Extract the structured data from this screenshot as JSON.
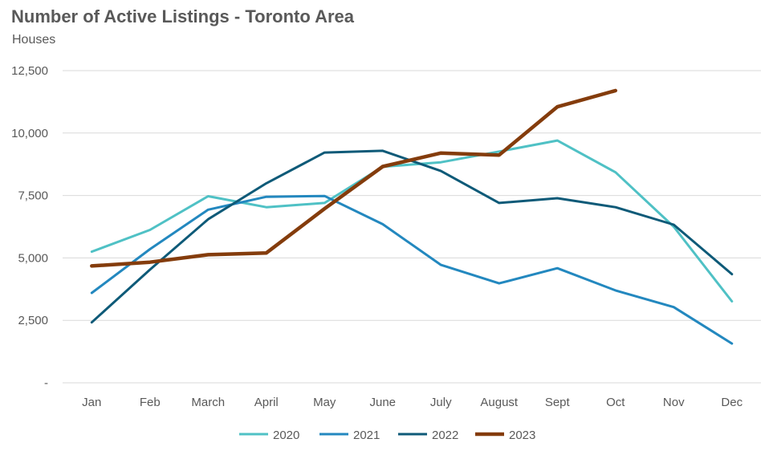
{
  "title": "Number of Active Listings - Toronto Area",
  "subtitle": "Houses",
  "chart_data": {
    "type": "line",
    "title": "Number of Active Listings - Toronto Area",
    "subtitle": "Houses",
    "xlabel": "",
    "ylabel": "",
    "categories": [
      "Jan",
      "Feb",
      "March",
      "April",
      "May",
      "June",
      "July",
      "August",
      "Sept",
      "Oct",
      "Nov",
      "Dec"
    ],
    "ylim": [
      0,
      12500
    ],
    "yticks": [
      0,
      2500,
      5000,
      7500,
      10000,
      12500
    ],
    "ytick_labels": [
      "-",
      "2,500",
      "5,000",
      "7,500",
      "10,000",
      "12,500"
    ],
    "grid": true,
    "legend_position": "bottom",
    "series": [
      {
        "name": "2020",
        "color": "#4FC1C5",
        "values": [
          5250,
          6120,
          7470,
          7030,
          7200,
          8650,
          8830,
          9260,
          9700,
          8430,
          6250,
          3260
        ]
      },
      {
        "name": "2021",
        "color": "#2388BF",
        "values": [
          3600,
          5350,
          6930,
          7450,
          7480,
          6350,
          4720,
          3980,
          4590,
          3700,
          3030,
          1570
        ]
      },
      {
        "name": "2022",
        "color": "#0E5A78",
        "values": [
          2420,
          4530,
          6550,
          7990,
          9220,
          9290,
          8480,
          7200,
          7390,
          7030,
          6330,
          4350
        ]
      },
      {
        "name": "2023",
        "color": "#843C0C",
        "values": [
          4680,
          4830,
          5130,
          5200,
          6970,
          8660,
          9200,
          9120,
          11050,
          11700,
          null,
          null
        ]
      }
    ]
  }
}
